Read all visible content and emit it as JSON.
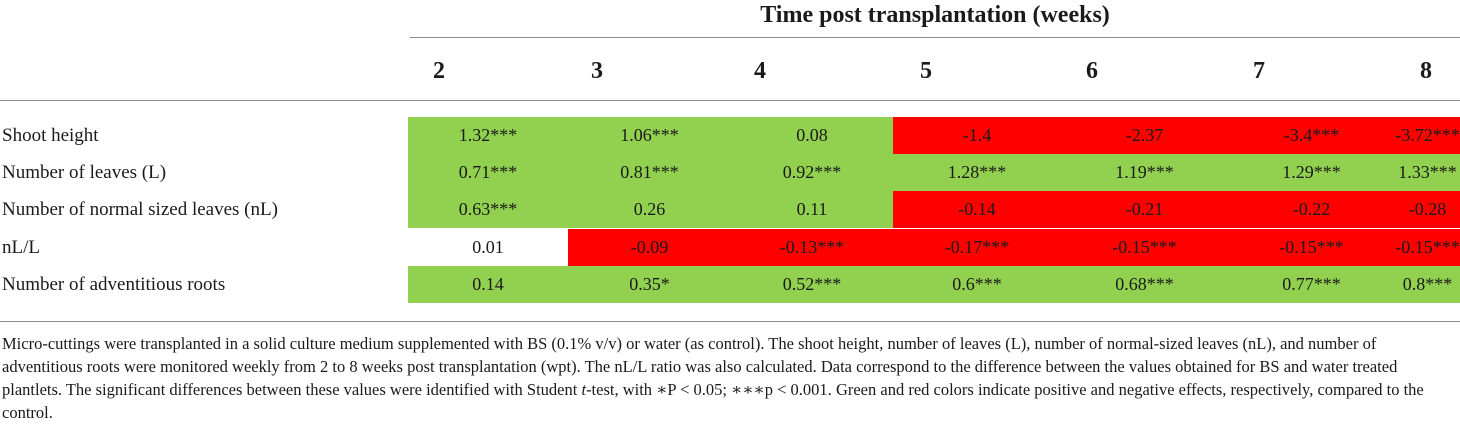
{
  "header": {
    "title": "Time post transplantation (weeks)"
  },
  "columns": [
    "2",
    "3",
    "4",
    "5",
    "6",
    "7",
    "8"
  ],
  "colors": {
    "positive": "#92d050",
    "negative": "#ff0000",
    "neutral": "#ffffff"
  },
  "rows": [
    {
      "label": "Shoot height",
      "values": [
        "1.32***",
        "1.06***",
        "0.08",
        "-1.4",
        "-2.37",
        "-3.4***",
        "-3.72***"
      ],
      "effects": [
        "positive",
        "positive",
        "positive",
        "negative",
        "negative",
        "negative",
        "negative"
      ]
    },
    {
      "label": "Number of leaves (L)",
      "values": [
        "0.71***",
        "0.81***",
        "0.92***",
        "1.28***",
        "1.19***",
        "1.29***",
        "1.33***"
      ],
      "effects": [
        "positive",
        "positive",
        "positive",
        "positive",
        "positive",
        "positive",
        "positive"
      ]
    },
    {
      "label": "Number of normal sized leaves (nL)",
      "values": [
        "0.63***",
        "0.26",
        "0.11",
        "-0.14",
        "-0.21",
        "-0.22",
        "-0.28"
      ],
      "effects": [
        "positive",
        "positive",
        "positive",
        "negative",
        "negative",
        "negative",
        "negative"
      ]
    },
    {
      "label": "nL/L",
      "values": [
        "0.01",
        "-0.09",
        "-0.13***",
        "-0.17***",
        "-0.15***",
        "-0.15***",
        "-0.15***"
      ],
      "effects": [
        "neutral",
        "negative",
        "negative",
        "negative",
        "negative",
        "negative",
        "negative"
      ]
    },
    {
      "label": "Number of adventitious roots",
      "values": [
        "0.14",
        "0.35*",
        "0.52***",
        "0.6***",
        "0.68***",
        "0.77***",
        "0.8***"
      ],
      "effects": [
        "positive",
        "positive",
        "positive",
        "positive",
        "positive",
        "positive",
        "positive"
      ]
    }
  ],
  "footnote": {
    "part1": "Micro-cuttings were transplanted in a solid culture medium supplemented with BS (0.1% v/v) or water (as control). The shoot height, number of leaves (L), number of normal-sized leaves (nL), and number of adventitious roots were monitored weekly from 2 to 8 weeks post transplantation (wpt). The nL/L ratio was also calculated. Data correspond to the difference between the values obtained for BS and water treated plantlets. The significant differences between these values were identified with Student ",
    "t": "t",
    "part2": "-test, with ",
    "sig1": "∗P < 0.05; ∗∗∗p < 0.001",
    "part3": ". Green and red colors indicate positive and negative effects, respectively, compared to the control."
  }
}
